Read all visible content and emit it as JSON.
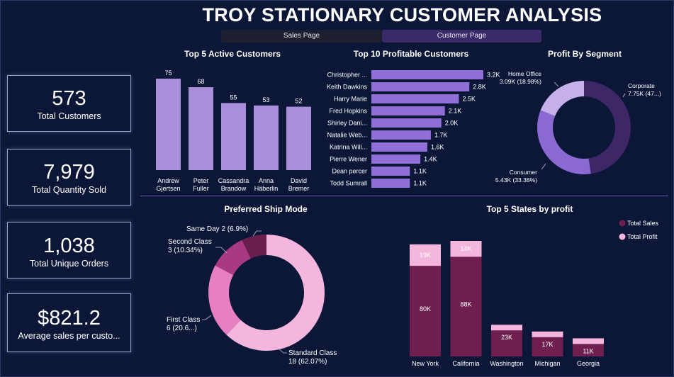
{
  "header": {
    "title": "TROY STATIONARY CUSTOMER ANALYSIS"
  },
  "nav": {
    "sales_label": "Sales Page",
    "customer_label": "Customer Page"
  },
  "kpis": [
    {
      "value": "573",
      "label": "Total Customers"
    },
    {
      "value": "7,979",
      "label": "Total Quantity Sold"
    },
    {
      "value": "1,038",
      "label": "Total Unique Orders"
    },
    {
      "value": "$821.2",
      "label": "Average sales per custo..."
    }
  ],
  "colors": {
    "background": "#0c1738",
    "active_bar": "#a98fda",
    "profit_bar": "#9070d8",
    "corporate": "#3d2766",
    "consumer": "#8a6ad2",
    "home_office": "#c6b0ea",
    "standard": "#f5b6dd",
    "first": "#e87fc3",
    "second": "#a83a82",
    "same_day": "#6a1e4e",
    "total_sales": "#6e1f4f",
    "total_profit": "#f5b6dd"
  },
  "chart_data": [
    {
      "type": "bar",
      "title": "Top 5 Active Customers",
      "categories": [
        "Andrew Gjertsen",
        "Peter Fuller",
        "Cassandra Brandow",
        "Anna Häberlin",
        "David Bremer"
      ],
      "category_lines": [
        [
          "Andrew",
          "Gjertsen"
        ],
        [
          "Peter",
          "Fuller"
        ],
        [
          "Cassandra",
          "Brandow"
        ],
        [
          "Anna",
          "Häberlin"
        ],
        [
          "David",
          "Bremer"
        ]
      ],
      "values": [
        75,
        68,
        55,
        53,
        52
      ],
      "data_labels": [
        "75",
        "68",
        "55",
        "53",
        "52"
      ],
      "ylim": [
        0,
        75
      ]
    },
    {
      "type": "bar",
      "orientation": "horizontal",
      "title": "Top 10 Profitable Customers",
      "categories": [
        "Christopher ...",
        "Keith Dawkins",
        "Harry Marie",
        "Fred Hopkins",
        "Shirley Dani...",
        "Natalie Web...",
        "Katrina Will...",
        "Pierre Wener",
        "Dean percer",
        "Todd Sumrall"
      ],
      "values": [
        3200,
        2800,
        2500,
        2100,
        2000,
        1700,
        1600,
        1400,
        1100,
        1100
      ],
      "data_labels": [
        "3.2K",
        "2.8K",
        "2.5K",
        "2.1K",
        "2.0K",
        "1.7K",
        "1.6K",
        "1.4K",
        "1.1K",
        "1.1K"
      ],
      "xlim": [
        0,
        3200
      ]
    },
    {
      "type": "pie",
      "donut": true,
      "title": "Profit By Segment",
      "slices": [
        {
          "name": "Corporate",
          "value": 7750,
          "label": "7.75K (47...)",
          "color_key": "corporate"
        },
        {
          "name": "Consumer",
          "value": 5430,
          "label": "5.43K (33.38%)",
          "color_key": "consumer"
        },
        {
          "name": "Home Office",
          "value": 3090,
          "label": "3.09K (18.98%)",
          "color_key": "home_office"
        }
      ]
    },
    {
      "type": "pie",
      "donut": true,
      "title": "Preferred Ship Mode",
      "slices": [
        {
          "name": "Standard Class",
          "value": 18,
          "label": "18 (62.07%)",
          "color_key": "standard"
        },
        {
          "name": "First Class",
          "value": 6,
          "label": "6 (20.6...)",
          "color_key": "first"
        },
        {
          "name": "Second Class",
          "value": 3,
          "label": "3 (10.34%)",
          "color_key": "second"
        },
        {
          "name": "Same Day",
          "value": 2,
          "label": "2 (6.9%)",
          "color_key": "same_day"
        }
      ]
    },
    {
      "type": "bar",
      "stacked": true,
      "title": "Top 5 States by profit",
      "categories": [
        "New York",
        "California",
        "Washington",
        "Michigan",
        "Georgia"
      ],
      "series": [
        {
          "name": "Total Sales",
          "values": [
            80000,
            88000,
            23000,
            17000,
            11000
          ],
          "labels": [
            "80K",
            "88K",
            "23K",
            "17K",
            "11K"
          ],
          "color_key": "total_sales"
        },
        {
          "name": "Total Profit",
          "values": [
            19000,
            14000,
            0,
            0,
            0
          ],
          "labels": [
            "19K",
            "14K",
            "",
            "",
            ""
          ],
          "color_key": "total_profit"
        }
      ],
      "legend": "top-right",
      "ylim": [
        0,
        102000
      ]
    }
  ]
}
